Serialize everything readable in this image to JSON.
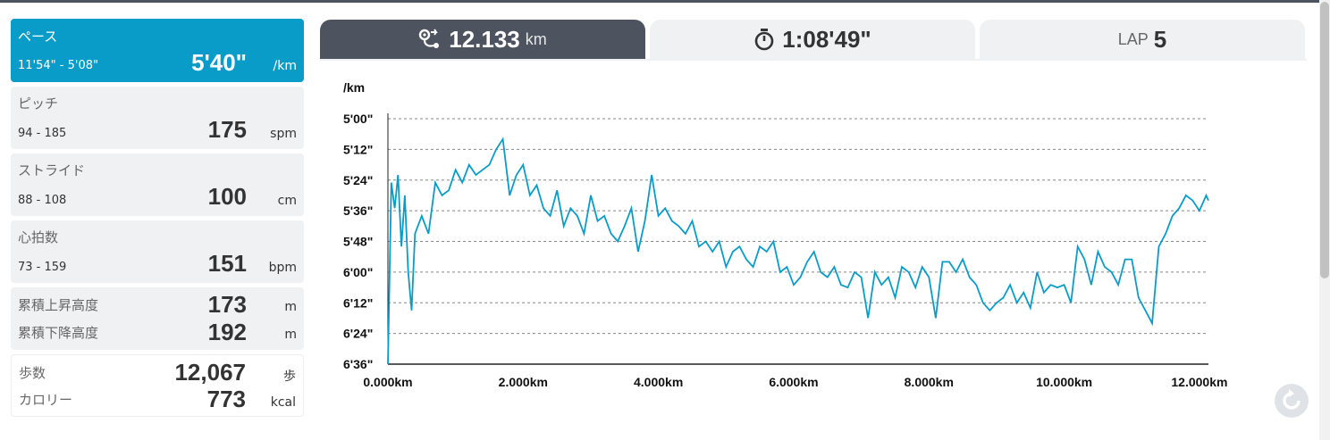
{
  "stats": [
    {
      "label": "ペース",
      "range": "11'54\" - 5'08\"",
      "value": "5'40\"",
      "unit": "/km",
      "active": true
    },
    {
      "label": "ピッチ",
      "range": "94 - 185",
      "value": "175",
      "unit": "spm"
    },
    {
      "label": "ストライド",
      "range": "88 - 108",
      "value": "100",
      "unit": "cm"
    },
    {
      "label": "心拍数",
      "range": "73 - 159",
      "value": "151",
      "unit": "bpm"
    }
  ],
  "elevation": {
    "up_label": "累積上昇高度",
    "up_value": "173",
    "up_unit": "m",
    "down_label": "累積下降高度",
    "down_value": "192",
    "down_unit": "m"
  },
  "steps": {
    "steps_label": "歩数",
    "steps_value": "12,067",
    "steps_unit": "歩",
    "cal_label": "カロリー",
    "cal_value": "773",
    "cal_unit": "kcal"
  },
  "tabs": {
    "distance": {
      "value": "12.133",
      "unit": "km",
      "icon": "route-icon"
    },
    "time": {
      "value": "1:08'49\"",
      "icon": "stopwatch-icon"
    },
    "lap": {
      "prefix": "LAP",
      "value": "5"
    }
  },
  "colors": {
    "accent": "#0a9cc9",
    "dark_tab": "#4d5460",
    "line": "#0a9cc9"
  },
  "chart_data": {
    "type": "line",
    "ylabel": "/km",
    "y_unit": "seconds per km (pace), inverted axis",
    "yticks": [
      "5'00\"",
      "5'12\"",
      "5'24\"",
      "5'36\"",
      "5'48\"",
      "6'00\"",
      "6'12\"",
      "6'24\"",
      "6'36\""
    ],
    "ylim": [
      300,
      396
    ],
    "y_inverted": true,
    "xticks": [
      "0.000km",
      "2.000km",
      "4.000km",
      "6.000km",
      "8.000km",
      "10.000km",
      "12.000km"
    ],
    "xlim": [
      0,
      12.133
    ],
    "grid": true,
    "series": [
      {
        "x": [
          0.0,
          0.05,
          0.1,
          0.15,
          0.2,
          0.25,
          0.3,
          0.35,
          0.4,
          0.5,
          0.6,
          0.7,
          0.8,
          0.9,
          1.0,
          1.1,
          1.2,
          1.3,
          1.4,
          1.5,
          1.6,
          1.7,
          1.8,
          1.9,
          2.0,
          2.1,
          2.2,
          2.3,
          2.4,
          2.5,
          2.6,
          2.7,
          2.8,
          2.9,
          3.0,
          3.1,
          3.2,
          3.3,
          3.4,
          3.5,
          3.6,
          3.7,
          3.8,
          3.9,
          4.0,
          4.1,
          4.2,
          4.3,
          4.4,
          4.5,
          4.6,
          4.7,
          4.8,
          4.9,
          5.0,
          5.1,
          5.2,
          5.3,
          5.4,
          5.5,
          5.6,
          5.7,
          5.8,
          5.9,
          6.0,
          6.1,
          6.2,
          6.3,
          6.4,
          6.5,
          6.6,
          6.7,
          6.8,
          6.9,
          7.0,
          7.1,
          7.2,
          7.3,
          7.4,
          7.5,
          7.6,
          7.7,
          7.8,
          7.9,
          8.0,
          8.1,
          8.2,
          8.3,
          8.4,
          8.5,
          8.6,
          8.7,
          8.8,
          8.9,
          9.0,
          9.1,
          9.2,
          9.3,
          9.4,
          9.5,
          9.6,
          9.7,
          9.8,
          9.9,
          10.0,
          10.1,
          10.2,
          10.3,
          10.4,
          10.5,
          10.6,
          10.7,
          10.8,
          10.9,
          11.0,
          11.1,
          11.2,
          11.3,
          11.4,
          11.5,
          11.6,
          11.7,
          11.8,
          11.9,
          12.0,
          12.1,
          12.133
        ],
        "y": [
          396,
          325,
          335,
          322,
          350,
          330,
          360,
          375,
          345,
          338,
          345,
          325,
          330,
          328,
          320,
          325,
          318,
          322,
          320,
          318,
          312,
          308,
          330,
          322,
          318,
          330,
          326,
          335,
          338,
          328,
          342,
          335,
          338,
          345,
          330,
          340,
          338,
          345,
          348,
          342,
          335,
          352,
          340,
          322,
          338,
          335,
          340,
          342,
          345,
          340,
          350,
          348,
          352,
          348,
          358,
          352,
          350,
          355,
          358,
          350,
          352,
          348,
          360,
          358,
          365,
          362,
          356,
          352,
          360,
          362,
          358,
          365,
          366,
          360,
          362,
          378,
          360,
          365,
          362,
          370,
          358,
          360,
          366,
          358,
          362,
          378,
          356,
          356,
          360,
          355,
          362,
          365,
          372,
          375,
          372,
          370,
          365,
          372,
          368,
          374,
          360,
          368,
          365,
          366,
          365,
          372,
          350,
          355,
          365,
          352,
          358,
          360,
          365,
          355,
          355,
          370,
          375,
          380,
          350,
          345,
          338,
          335,
          330,
          332,
          336,
          330,
          332
        ]
      }
    ]
  }
}
